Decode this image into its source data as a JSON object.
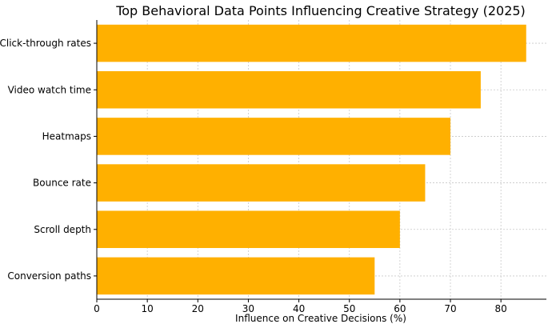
{
  "chart_data": {
    "type": "bar",
    "orientation": "horizontal",
    "title": "Top Behavioral Data Points Influencing Creative Strategy (2025)",
    "xlabel": "Influence on Creative Decisions (%)",
    "ylabel": "",
    "categories": [
      "Click-through rates",
      "Video watch time",
      "Heatmaps",
      "Bounce rate",
      "Scroll depth",
      "Conversion paths"
    ],
    "values": [
      85,
      76,
      70,
      65,
      60,
      55
    ],
    "xlim": [
      0,
      89
    ],
    "xticks": [
      0,
      10,
      20,
      30,
      40,
      50,
      60,
      70,
      80
    ],
    "grid": true,
    "bar_color": "#ffb000",
    "grid_color": "#c8c8c8"
  }
}
